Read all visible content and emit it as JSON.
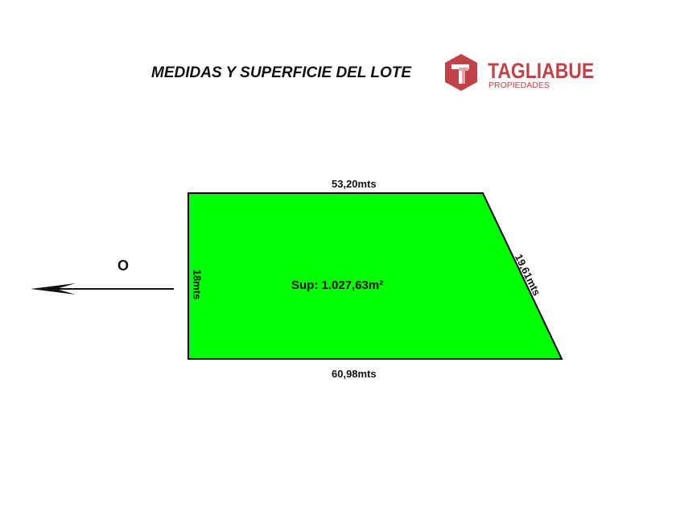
{
  "title": "MEDIDAS Y SUPERFICIE DEL LOTE",
  "logo": {
    "name": "TAGLIABUE",
    "subtitle": "PROPIEDADES",
    "color": "#c0434a"
  },
  "lot": {
    "fill_color": "#00ff00",
    "top": "53,20mts",
    "bottom": "60,98mts",
    "left": "18mts",
    "right": "19,61mts",
    "area": "Sup: 1.027,63m²"
  },
  "orientation": {
    "label": "O",
    "icon": "arrow-left-icon"
  }
}
